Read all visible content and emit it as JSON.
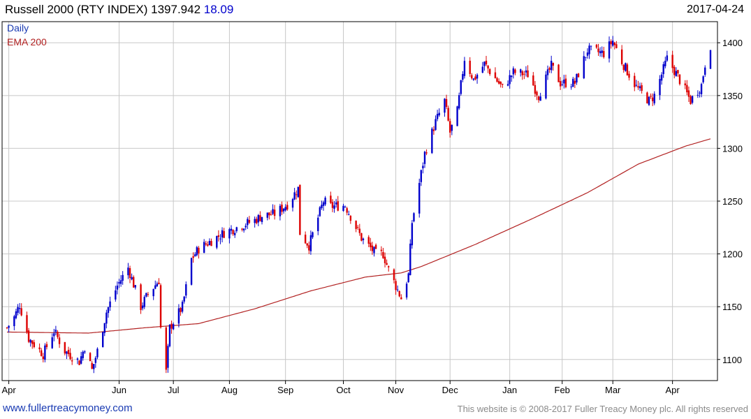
{
  "header": {
    "title": "Russell 2000 (RTY INDEX)",
    "last": "1397.942",
    "change": "18.09",
    "date": "2017-04-24"
  },
  "footer": {
    "site": "www.fullertreacymoney.com",
    "copyright": "This website is © 2008-2017 Fuller Treacy Money plc. All rights reserved"
  },
  "colors": {
    "up": "#0000cc",
    "down": "#dd0000",
    "ema": "#b22222",
    "grid": "#c8c8c8",
    "frame": "#000000"
  },
  "chart_data": {
    "type": "candlestick",
    "legend": [
      {
        "label": "Daily",
        "color": "#1a3bb3"
      },
      {
        "label": "EMA 200",
        "color": "#b22222"
      }
    ],
    "legend_position": "top-left",
    "grid": true,
    "y_axis_side": "right",
    "ylim": [
      1080,
      1420
    ],
    "yticks": [
      1100,
      1150,
      1200,
      1250,
      1300,
      1350,
      1400
    ],
    "xticks": [
      "Apr",
      "Jun",
      "Jul",
      "Aug",
      "Sep",
      "Oct",
      "Nov",
      "Dec",
      "Jan",
      "Feb",
      "Mar",
      "Apr"
    ],
    "xtick_dates": [
      "2016-04-01",
      "2016-06-01",
      "2016-07-01",
      "2016-08-01",
      "2016-09-01",
      "2016-10-03",
      "2016-11-01",
      "2016-12-01",
      "2017-01-03",
      "2017-02-01",
      "2017-03-01",
      "2017-04-03"
    ],
    "x_range": [
      "2016-03-31",
      "2017-04-24"
    ],
    "price_anchors": [
      [
        "2016-03-31",
        1130
      ],
      [
        "2016-04-04",
        1140
      ],
      [
        "2016-04-07",
        1152
      ],
      [
        "2016-04-12",
        1120
      ],
      [
        "2016-04-20",
        1105
      ],
      [
        "2016-04-26",
        1127
      ],
      [
        "2016-05-02",
        1108
      ],
      [
        "2016-05-10",
        1098
      ],
      [
        "2016-05-13",
        1112
      ],
      [
        "2016-05-17",
        1090
      ],
      [
        "2016-05-20",
        1108
      ],
      [
        "2016-05-25",
        1145
      ],
      [
        "2016-05-31",
        1170
      ],
      [
        "2016-06-06",
        1187
      ],
      [
        "2016-06-13",
        1150
      ],
      [
        "2016-06-17",
        1162
      ],
      [
        "2016-06-23",
        1175
      ],
      [
        "2016-06-24",
        1130
      ],
      [
        "2016-06-27",
        1088
      ],
      [
        "2016-06-29",
        1130
      ],
      [
        "2016-07-06",
        1150
      ],
      [
        "2016-07-11",
        1195
      ],
      [
        "2016-07-15",
        1205
      ],
      [
        "2016-07-29",
        1220
      ],
      [
        "2016-08-05",
        1225
      ],
      [
        "2016-08-15",
        1232
      ],
      [
        "2016-08-19",
        1236
      ],
      [
        "2016-08-26",
        1238
      ],
      [
        "2016-09-02",
        1247
      ],
      [
        "2016-09-08",
        1262
      ],
      [
        "2016-09-09",
        1220
      ],
      [
        "2016-09-14",
        1208
      ],
      [
        "2016-09-22",
        1250
      ],
      [
        "2016-09-26",
        1245
      ],
      [
        "2016-10-04",
        1246
      ],
      [
        "2016-10-13",
        1215
      ],
      [
        "2016-10-21",
        1200
      ],
      [
        "2016-10-25",
        1200
      ],
      [
        "2016-10-28",
        1185
      ],
      [
        "2016-11-04",
        1158
      ],
      [
        "2016-11-08",
        1180
      ],
      [
        "2016-11-10",
        1230
      ],
      [
        "2016-11-17",
        1295
      ],
      [
        "2016-11-23",
        1325
      ],
      [
        "2016-11-28",
        1345
      ],
      [
        "2016-12-01",
        1315
      ],
      [
        "2016-12-05",
        1335
      ],
      [
        "2016-12-09",
        1385
      ],
      [
        "2016-12-14",
        1365
      ],
      [
        "2016-12-20",
        1380
      ],
      [
        "2016-12-30",
        1357
      ],
      [
        "2017-01-05",
        1372
      ],
      [
        "2017-01-13",
        1370
      ],
      [
        "2017-01-19",
        1350
      ],
      [
        "2017-01-26",
        1378
      ],
      [
        "2017-01-31",
        1362
      ],
      [
        "2017-02-08",
        1362
      ],
      [
        "2017-02-15",
        1393
      ],
      [
        "2017-02-24",
        1390
      ],
      [
        "2017-03-01",
        1402
      ],
      [
        "2017-03-06",
        1382
      ],
      [
        "2017-03-14",
        1358
      ],
      [
        "2017-03-21",
        1345
      ],
      [
        "2017-03-24",
        1350
      ],
      [
        "2017-03-31",
        1385
      ],
      [
        "2017-04-06",
        1368
      ],
      [
        "2017-04-13",
        1345
      ],
      [
        "2017-04-19",
        1360
      ],
      [
        "2017-04-21",
        1380
      ],
      [
        "2017-04-24",
        1398
      ]
    ],
    "ema200_anchors": [
      [
        "2016-03-31",
        1126
      ],
      [
        "2016-05-15",
        1125
      ],
      [
        "2016-06-15",
        1130
      ],
      [
        "2016-07-15",
        1134
      ],
      [
        "2016-08-15",
        1148
      ],
      [
        "2016-09-15",
        1165
      ],
      [
        "2016-10-15",
        1178
      ],
      [
        "2016-11-04",
        1182
      ],
      [
        "2016-11-15",
        1188
      ],
      [
        "2016-12-15",
        1209
      ],
      [
        "2017-01-15",
        1233
      ],
      [
        "2017-02-15",
        1258
      ],
      [
        "2017-03-15",
        1285
      ],
      [
        "2017-04-10",
        1302
      ],
      [
        "2017-04-24",
        1309
      ]
    ]
  }
}
